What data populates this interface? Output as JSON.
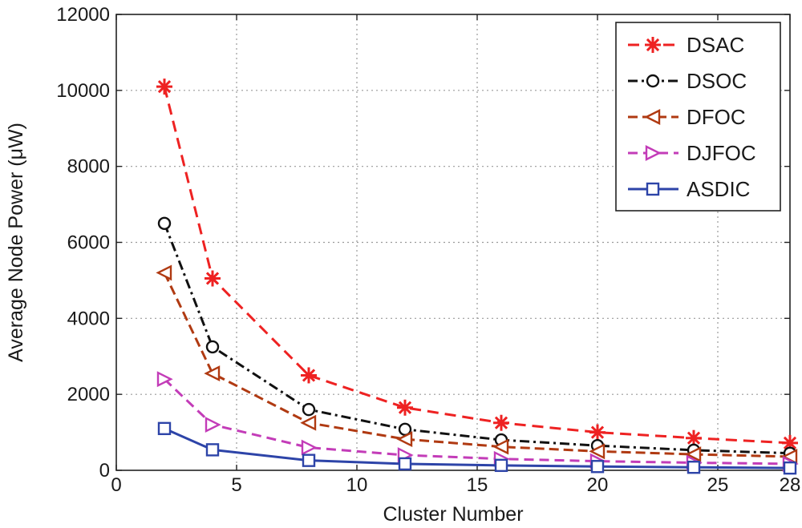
{
  "chart_data": {
    "type": "line",
    "xlabel": "Cluster Number",
    "ylabel": "Average Node Power (μW)",
    "xlim": [
      0,
      28
    ],
    "ylim": [
      0,
      12000
    ],
    "x_ticks": [
      "0",
      "5",
      "10",
      "15",
      "20",
      "25",
      "28"
    ],
    "x_tick_values": [
      0,
      5,
      10,
      15,
      20,
      25,
      28
    ],
    "y_ticks": [
      "0",
      "2000",
      "4000",
      "6000",
      "8000",
      "10000",
      "12000"
    ],
    "y_tick_values": [
      0,
      2000,
      4000,
      6000,
      8000,
      10000,
      12000
    ],
    "grid": true,
    "legend_position": "top-right",
    "x": [
      2,
      4,
      8,
      12,
      16,
      20,
      24,
      28
    ],
    "series": [
      {
        "name": "DSAC",
        "values": [
          10100,
          5050,
          2500,
          1650,
          1250,
          1000,
          850,
          720
        ],
        "color": "#ee2222",
        "marker": "star",
        "dash": "14,8"
      },
      {
        "name": "DSOC",
        "values": [
          6500,
          3250,
          1600,
          1080,
          800,
          650,
          530,
          450
        ],
        "color": "#111111",
        "marker": "circle",
        "dash": "12,5,3,5"
      },
      {
        "name": "DFOC",
        "values": [
          5200,
          2550,
          1250,
          820,
          620,
          500,
          420,
          360
        ],
        "color": "#b03a12",
        "marker": "triangle-left",
        "dash": "12,6"
      },
      {
        "name": "DJFOC",
        "values": [
          2400,
          1200,
          600,
          400,
          300,
          240,
          200,
          170
        ],
        "color": "#c33cb8",
        "marker": "triangle-right",
        "dash": "12,7"
      },
      {
        "name": "ASDIC",
        "values": [
          1100,
          540,
          260,
          170,
          130,
          100,
          80,
          60
        ],
        "color": "#2d44a8",
        "marker": "square",
        "dash": ""
      }
    ]
  }
}
